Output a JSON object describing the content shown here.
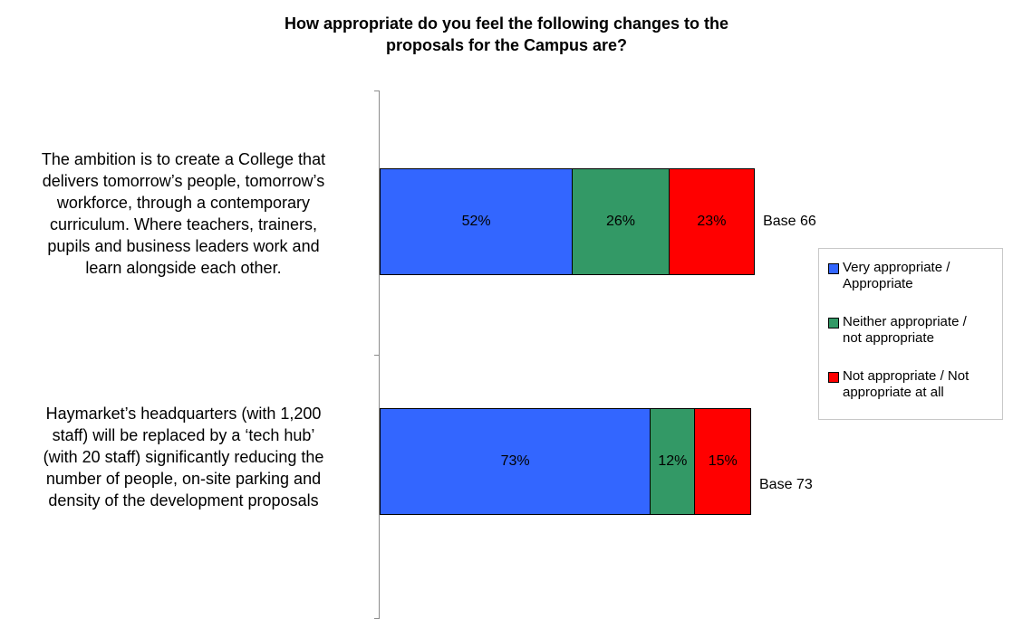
{
  "chart_data": {
    "type": "bar",
    "orientation": "horizontal",
    "stacked": true,
    "title": [
      "How appropriate do you feel the following changes to the",
      "proposals for the Campus are?"
    ],
    "categories": [
      {
        "lines": [
          "The ambition is to create a College that",
          "delivers tomorrow’s people, tomorrow’s",
          "workforce, through a contemporary",
          "curriculum. Where teachers, trainers,",
          "pupils and business leaders work and",
          "learn alongside each other."
        ],
        "base": "Base 66"
      },
      {
        "lines": [
          "Haymarket’s headquarters (with 1,200",
          "staff) will be replaced by a ‘tech hub’",
          "(with 20 staff) significantly reducing the",
          "number of people, on-site parking and",
          "density of the development proposals"
        ],
        "base": "Base 73"
      }
    ],
    "series": [
      {
        "name": [
          "Very appropriate /",
          "Appropriate"
        ],
        "color": "#3366ff",
        "values": [
          52,
          73
        ],
        "labels": [
          "52%",
          "73%"
        ]
      },
      {
        "name": [
          "Neither appropriate /",
          "not appropriate"
        ],
        "color": "#339966",
        "values": [
          26,
          12
        ],
        "labels": [
          "26%",
          "12%"
        ]
      },
      {
        "name": [
          "Not appropriate / Not",
          "appropriate at all"
        ],
        "color": "#ff0000",
        "values": [
          23,
          15
        ],
        "labels": [
          "23%",
          "15%"
        ]
      }
    ],
    "legend_position": "right",
    "grid": false
  }
}
